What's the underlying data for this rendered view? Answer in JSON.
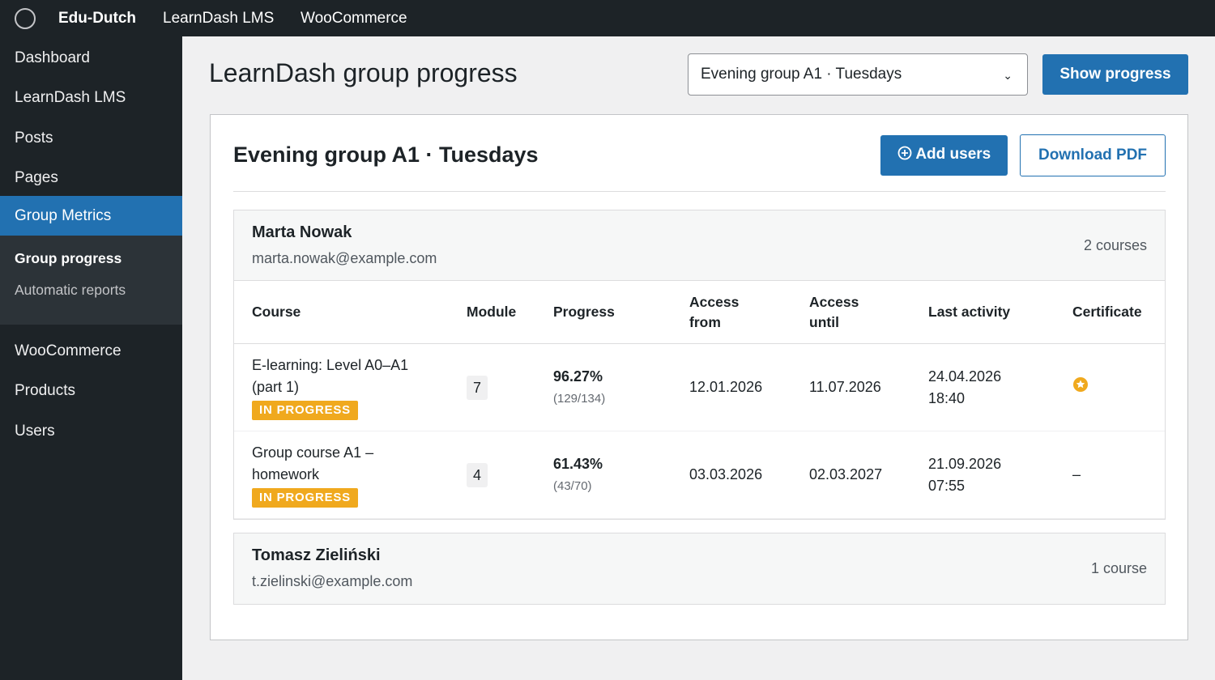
{
  "top_bar": {
    "site": "Edu-Dutch",
    "links": [
      "LearnDash LMS",
      "WooCommerce"
    ]
  },
  "sidebar": {
    "menu": [
      "Dashboard",
      "LearnDash LMS",
      "Posts",
      "Pages",
      "Group Metrics"
    ],
    "submenu": [
      "Group progress",
      "Automatic reports"
    ],
    "menu_after": [
      "WooCommerce",
      "Products",
      "Users"
    ]
  },
  "header": {
    "title": "LearnDash group progress",
    "select": "Evening group A1 · Tuesdays",
    "button": "Show progress"
  },
  "group": {
    "title": "Evening group A1 · Tuesdays",
    "add_users": "Add users",
    "download": "Download PDF",
    "columns": [
      "Course",
      "Module",
      "Progress",
      "Access from",
      "Access until",
      "Last activity",
      "Certificate"
    ],
    "users": [
      {
        "name": "Marta Nowak",
        "email": "marta.nowak@example.com",
        "courses": "2 courses",
        "rows": [
          {
            "course": "E-learning: Level A0–A1 (part 1)",
            "status": "IN PROGRESS",
            "module": "7",
            "progress": "96.27%",
            "detail": "(129/134)",
            "access_from": "12.01.2026",
            "access_until": "11.07.2026",
            "last_activity": "24.04.2026 18:40"
          },
          {
            "course": "Group course A1 – homework",
            "status": "IN PROGRESS",
            "module": "4",
            "progress": "61.43%",
            "detail": "(43/70)",
            "access_from": "03.03.2026",
            "access_until": "02.03.2027",
            "last_activity": "21.09.2026 07:55",
            "certificate": "–"
          }
        ]
      },
      {
        "name": "Tomasz Zieliński",
        "email": "t.zielinski@example.com",
        "courses": "1 course"
      }
    ]
  }
}
